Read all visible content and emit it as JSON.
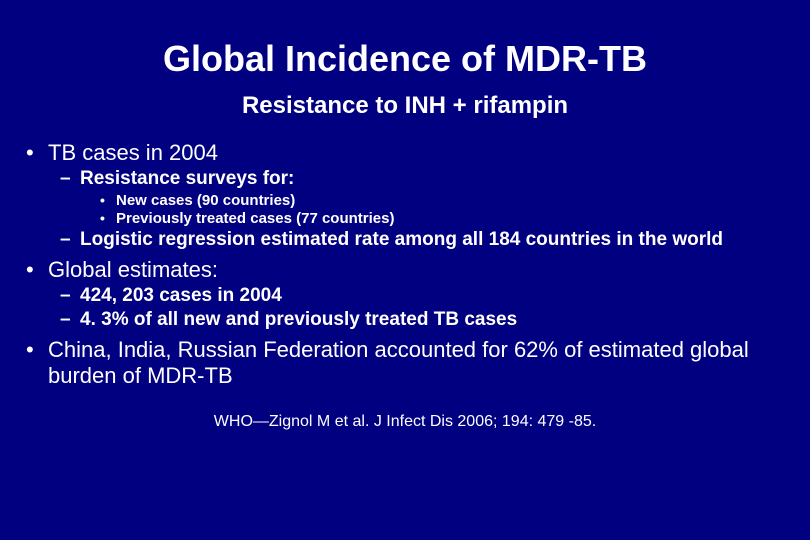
{
  "colors": {
    "background": "#000080",
    "text": "#ffffff"
  },
  "fonts": {
    "family": "Arial",
    "title_size": 36,
    "subtitle_size": 24,
    "lvl1_size": 22,
    "lvl2_size": 19,
    "lvl3_size": 15,
    "citation_size": 16
  },
  "title": "Global Incidence of MDR-TB",
  "subtitle": "Resistance to INH + rifampin",
  "bullets": {
    "b1": "TB cases in 2004",
    "b1_1": "Resistance surveys for:",
    "b1_1_1": "New cases (90 countries)",
    "b1_1_2": "Previously treated cases (77 countries)",
    "b1_2": "Logistic regression estimated rate among all 184 countries in the world",
    "b2": "Global estimates:",
    "b2_1": "424, 203 cases in 2004",
    "b2_2": "4. 3% of all new and previously treated TB cases",
    "b3": "China, India, Russian Federation accounted for 62% of estimated global burden of MDR-TB"
  },
  "citation": "WHO—Zignol M et al. J Infect Dis 2006; 194: 479 -85."
}
